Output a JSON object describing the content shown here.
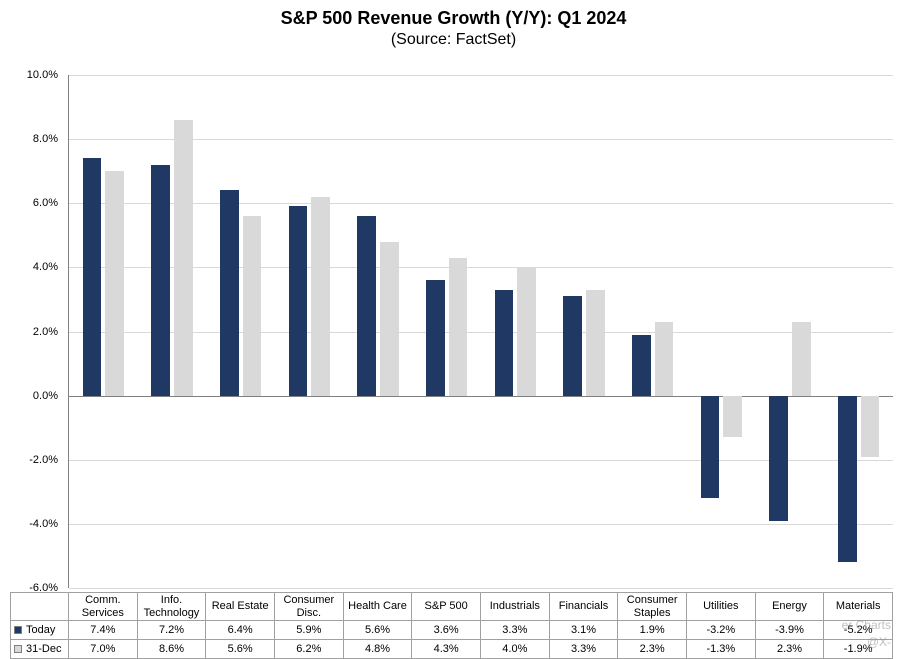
{
  "chart_data": {
    "type": "bar",
    "title": "S&P 500 Revenue Growth (Y/Y): Q1 2024",
    "subtitle": "(Source: FactSet)",
    "categories": [
      "Comm. Services",
      "Info. Technology",
      "Real Estate",
      "Consumer Disc.",
      "Health Care",
      "S&P 500",
      "Industrials",
      "Financials",
      "Consumer Staples",
      "Utilities",
      "Energy",
      "Materials"
    ],
    "series": [
      {
        "name": "Today",
        "color": "#1F3864",
        "values": [
          7.4,
          7.2,
          6.4,
          5.9,
          5.6,
          3.6,
          3.3,
          3.1,
          1.9,
          -3.2,
          -3.9,
          -5.2
        ]
      },
      {
        "name": "31-Dec",
        "color": "#D9D9D9",
        "values": [
          7.0,
          8.6,
          5.6,
          6.2,
          4.8,
          4.3,
          4.0,
          3.3,
          2.3,
          -1.3,
          2.3,
          -1.9
        ]
      }
    ],
    "ylim": [
      -6,
      10
    ],
    "ytick_step": 2,
    "ytick_format": "percent_1dp",
    "value_format": "percent_1dp",
    "grid": true,
    "legend_position": "table-left",
    "table_shown": true
  },
  "colors": {
    "gridline": "#d9d9d9",
    "zero_line": "#808080",
    "table_border": "#a0a0a0"
  },
  "watermark": {
    "line1": "er Charts",
    "line2": "@X-"
  }
}
